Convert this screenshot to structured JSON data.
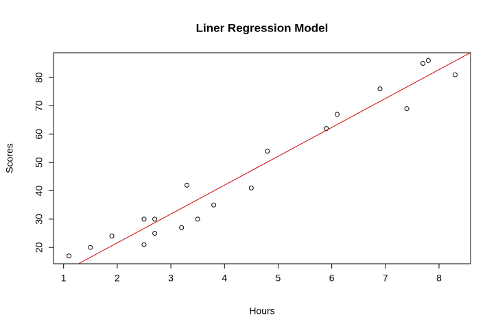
{
  "chart_data": {
    "type": "scatter",
    "title": "Liner Regression Model",
    "x_label": "Hours",
    "y_label": "Scores",
    "x": [
      1.1,
      1.5,
      1.9,
      2.5,
      2.5,
      2.7,
      2.7,
      3.2,
      3.3,
      3.5,
      3.8,
      4.5,
      4.8,
      5.9,
      6.1,
      6.9,
      7.4,
      7.7,
      7.8,
      8.3
    ],
    "values": [
      17,
      20,
      24,
      21,
      30,
      25,
      30,
      27,
      42,
      30,
      35,
      41,
      54,
      62,
      67,
      76,
      69,
      85,
      86,
      81
    ],
    "color": "#000000",
    "line": {
      "intercept": 1.2,
      "slope": 10.2,
      "color": "#cc0000"
    },
    "xlim": [
      0.812,
      8.588
    ],
    "ylim": [
      14.24,
      88.76
    ],
    "xticks": [
      1,
      2,
      3,
      4,
      5,
      6,
      7,
      8
    ],
    "yticks": [
      20,
      30,
      40,
      50,
      60,
      70,
      80
    ]
  }
}
